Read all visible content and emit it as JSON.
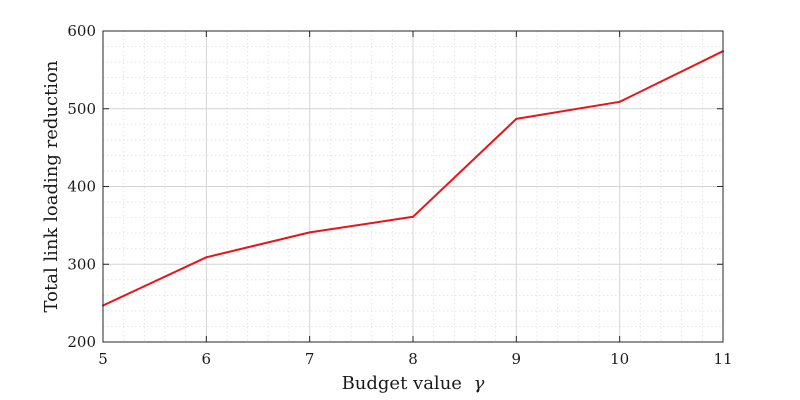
{
  "chart_data": {
    "type": "line",
    "title": "",
    "xlabel": "Budget value",
    "xlabel_symbol": "γ",
    "ylabel": "Total link loading reduction",
    "xlim": [
      5,
      11
    ],
    "ylim": [
      200,
      600
    ],
    "x_ticks": [
      "5",
      "6",
      "7",
      "8",
      "9",
      "10",
      "11"
    ],
    "y_ticks": [
      "200",
      "300",
      "400",
      "500",
      "600"
    ],
    "grid": true,
    "minor_grid": true,
    "legend": "none",
    "series": [
      {
        "color": "#e8141b",
        "x": [
          5,
          6,
          7,
          8,
          9,
          10,
          11
        ],
        "y": [
          247,
          309,
          341,
          361,
          487,
          509,
          574
        ]
      }
    ]
  }
}
